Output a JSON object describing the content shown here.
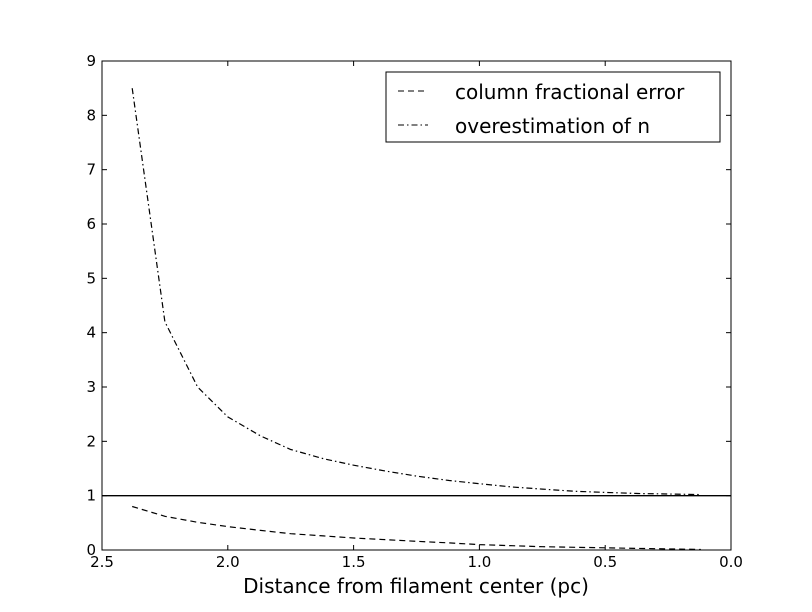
{
  "chart_data": {
    "type": "line",
    "title": "",
    "xlabel": "Distance from filament center (pc)",
    "ylabel": "",
    "xlim": [
      2.5,
      0.0
    ],
    "ylim": [
      0,
      9
    ],
    "x_inverted": true,
    "grid": false,
    "legend_position": "top-right",
    "xticks": [
      "2.5",
      "2.0",
      "1.5",
      "1.0",
      "0.5",
      "0.0"
    ],
    "yticks": [
      "0",
      "1",
      "2",
      "3",
      "4",
      "5",
      "6",
      "7",
      "8",
      "9"
    ],
    "reference_line": {
      "y": 1,
      "style": "solid"
    },
    "series": [
      {
        "name": "column fractional error",
        "style": "dashed",
        "color": "#000000",
        "x": [
          2.38,
          2.25,
          2.12,
          2.0,
          1.87,
          1.75,
          1.62,
          1.5,
          1.37,
          1.25,
          1.12,
          1.0,
          0.87,
          0.75,
          0.62,
          0.5,
          0.37,
          0.25,
          0.12
        ],
        "y": [
          0.8,
          0.62,
          0.51,
          0.43,
          0.36,
          0.3,
          0.26,
          0.22,
          0.19,
          0.16,
          0.13,
          0.1,
          0.08,
          0.06,
          0.05,
          0.04,
          0.03,
          0.02,
          0.01
        ]
      },
      {
        "name": "overestimation of n",
        "style": "dashdot",
        "color": "#000000",
        "x": [
          2.38,
          2.25,
          2.12,
          2.0,
          1.87,
          1.75,
          1.62,
          1.5,
          1.37,
          1.25,
          1.12,
          1.0,
          0.87,
          0.75,
          0.62,
          0.5,
          0.37,
          0.25,
          0.12
        ],
        "y": [
          8.5,
          4.2,
          3.0,
          2.45,
          2.1,
          1.85,
          1.68,
          1.56,
          1.45,
          1.36,
          1.28,
          1.22,
          1.16,
          1.12,
          1.08,
          1.06,
          1.04,
          1.03,
          1.02
        ]
      }
    ]
  }
}
